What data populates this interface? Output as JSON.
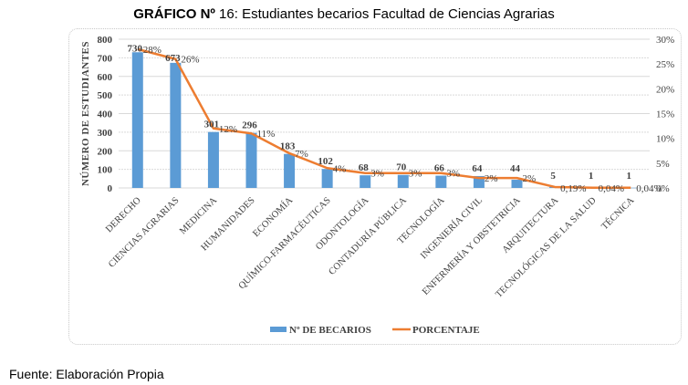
{
  "title": {
    "bold": "GRÁFICO Nº",
    "rest": " 16: Estudiantes becarios Facultad de Ciencias Agrarias"
  },
  "source": "Fuente: Elaboración Propia",
  "colors": {
    "bar": "#5b9bd5",
    "line": "#ed7d31",
    "text": "#404040",
    "grid": "#d9d9d9"
  },
  "chart_data": {
    "type": "bar",
    "title": "GRÁFICO Nº 16: Estudiantes becarios Facultad de Ciencias Agrarias",
    "xlabel": "",
    "ylabel": "NÚMERO DE ESTUDIANTES",
    "ylim": [
      0,
      800
    ],
    "y_ticks": [
      "0",
      "100",
      "200",
      "300",
      "400",
      "500",
      "600",
      "700",
      "800"
    ],
    "y2lim": [
      0,
      30
    ],
    "y2_ticks": [
      "0%",
      "5%",
      "10%",
      "15%",
      "20%",
      "25%",
      "30%"
    ],
    "grid": true,
    "legend_position": "bottom",
    "categories": [
      "DERECHO",
      "CIENCIAS AGRARIAS",
      "MEDICINA",
      "HUMANIDADES",
      "ECONOMÍA",
      "QUÍMICO-FARMACÉUTICAS",
      "ODONTOLOGÍA",
      "CONTADURÍA PÚBLICA",
      "TECNOLOGÍA",
      "INGENIERÍA CIVIL",
      "ENFERMERÍA Y OBSTETRICIA",
      "ARQUITECTURA",
      "TECNOLÓGICAS DE LA SALUD",
      "TÉCNICA"
    ],
    "series": [
      {
        "name": "Nº DE BECARIOS",
        "type": "bar",
        "axis": "left",
        "values": [
          730,
          673,
          301,
          296,
          183,
          102,
          68,
          70,
          66,
          64,
          44,
          5,
          1,
          1
        ],
        "labels": [
          "730",
          "673",
          "301",
          "296",
          "183",
          "102",
          "68",
          "70",
          "66",
          "64",
          "44",
          "5",
          "1",
          "1"
        ]
      },
      {
        "name": "PORCENTAJE",
        "type": "line",
        "axis": "right",
        "values": [
          28,
          26,
          12,
          11,
          7,
          4,
          3,
          3,
          3,
          2,
          2,
          0.19,
          0.04,
          0.04
        ],
        "labels": [
          "28%",
          "26%",
          "12%",
          "11%",
          "7%",
          "4%",
          "3%",
          "3%",
          "3%",
          "2%",
          "2%",
          "0,19%",
          "0,04%",
          "0,04%"
        ]
      }
    ]
  }
}
